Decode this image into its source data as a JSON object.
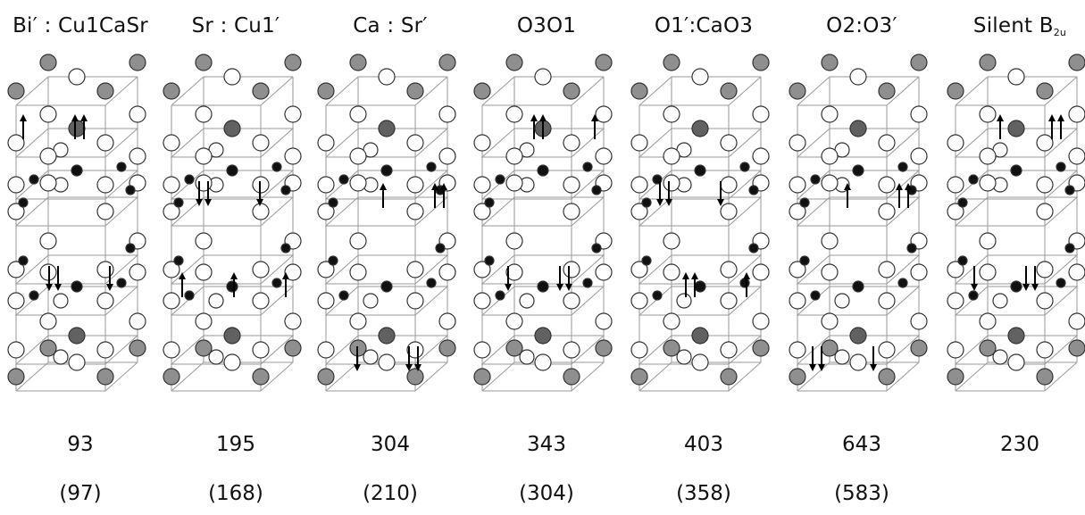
{
  "colors": {
    "gray_atom": "#8f8f8f",
    "dark_atom": "#616161",
    "black_atom": "#111111",
    "white_atom": "#ffffff",
    "edge": "#9a9a9a"
  },
  "modes": [
    {
      "label": "Bi′ : Cu1CaSr",
      "freq_calc": "93",
      "freq_exp": "(97)"
    },
    {
      "label": "Sr : Cu1′",
      "freq_calc": "195",
      "freq_exp": "(168)"
    },
    {
      "label": "Ca : Sr′",
      "freq_calc": "304",
      "freq_exp": "(210)"
    },
    {
      "label": "O3O1",
      "freq_calc": "343",
      "freq_exp": "(304)"
    },
    {
      "label": "O1′:CaO3",
      "freq_calc": "403",
      "freq_exp": "(358)"
    },
    {
      "label": "O2:O3′",
      "freq_calc": "643",
      "freq_exp": "(583)"
    },
    {
      "label": "Silent B",
      "label_sub": "2u",
      "freq_calc": "230",
      "freq_exp": ""
    }
  ]
}
